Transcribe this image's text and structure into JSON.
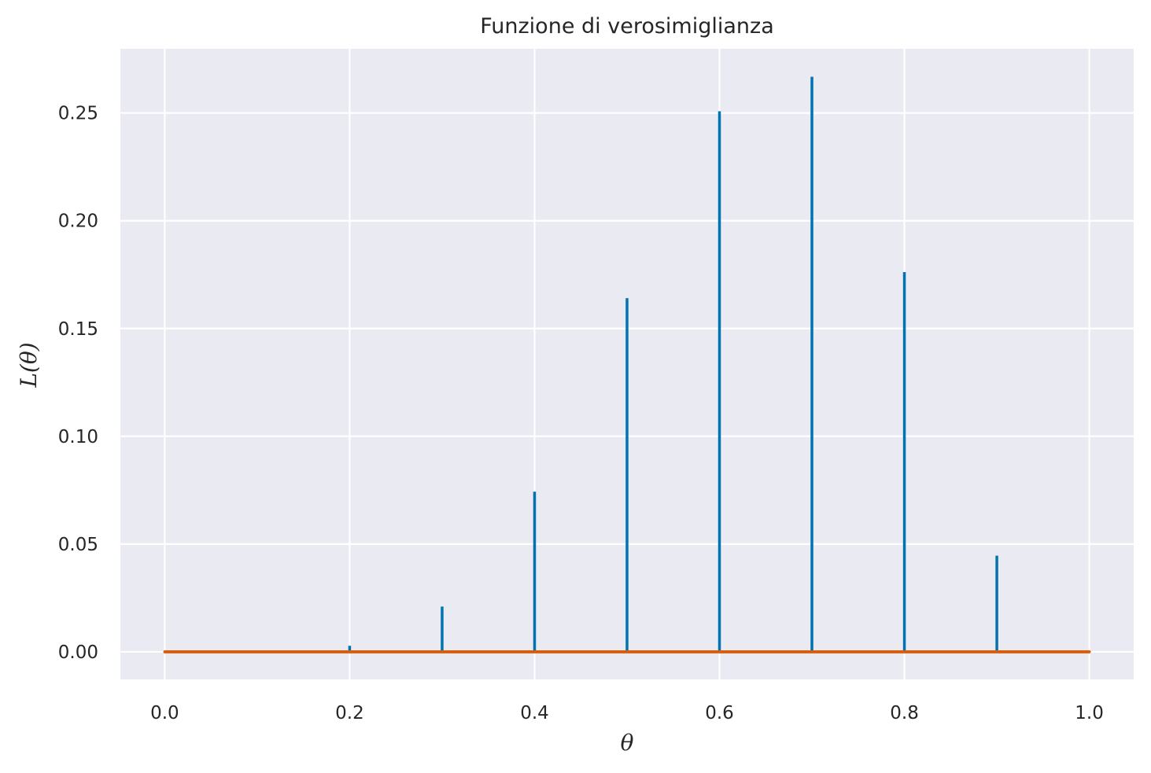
{
  "chart_data": {
    "type": "bar",
    "title": "Funzione di verosimiglianza",
    "xlabel": "θ",
    "ylabel": "L(θ)",
    "xlim": [
      -0.048,
      1.048
    ],
    "ylim": [
      -0.0128,
      0.2798
    ],
    "xticks": [
      0.0,
      0.2,
      0.4,
      0.6,
      0.8,
      1.0
    ],
    "xtick_labels": [
      "0.0",
      "0.2",
      "0.4",
      "0.6",
      "0.8",
      "1.0"
    ],
    "yticks": [
      0.0,
      0.05,
      0.1,
      0.15,
      0.2,
      0.25
    ],
    "ytick_labels": [
      "0.00",
      "0.05",
      "0.10",
      "0.15",
      "0.20",
      "0.25"
    ],
    "grid": true,
    "series": [
      {
        "type": "stem",
        "color": "#0173b2",
        "x": [
          0.1,
          0.2,
          0.3,
          0.4,
          0.5,
          0.6,
          0.7,
          0.8,
          0.9
        ],
        "values": [
          0.0001,
          0.0028,
          0.021,
          0.0743,
          0.1641,
          0.2508,
          0.2668,
          0.1762,
          0.0446
        ]
      },
      {
        "type": "line",
        "color": "#de5a05",
        "x": [
          0.0,
          1.0
        ],
        "values": [
          0.0,
          0.0
        ]
      }
    ]
  }
}
